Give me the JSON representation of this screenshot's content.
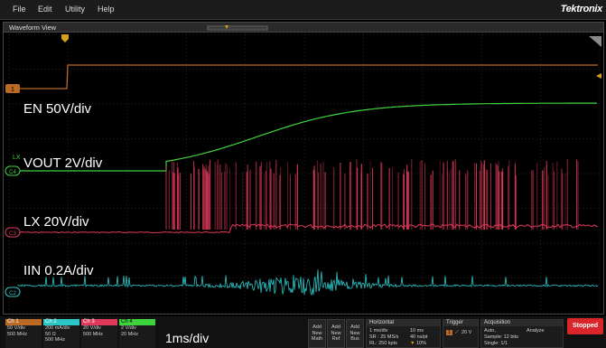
{
  "menu": {
    "items": [
      "File",
      "Edit",
      "Utility",
      "Help"
    ],
    "brand": "Tektronix"
  },
  "waveform_view": {
    "title": "Waveform View"
  },
  "channel_labels": {
    "en": "EN 50V/div",
    "vout": "VOUT 2V/div",
    "lx": "LX 20V/div",
    "iin": "IIN 0.2A/div"
  },
  "markers": {
    "ch1": "1",
    "ch4": "C4",
    "ch3": "C3",
    "ch2": "C2",
    "lx_ref": "LX"
  },
  "colors": {
    "ch1": "#b96a25",
    "ch2": "#2cc6c6",
    "ch3": "#e03a5a",
    "ch4": "#3ed43e",
    "stopped": "#d8262b"
  },
  "channels": [
    {
      "name": "Ch 1",
      "scale": "50 V/div",
      "coupling": "",
      "bw": "500 MHz"
    },
    {
      "name": "Ch 2",
      "scale": "200 mA/div",
      "coupling": "50 Ω",
      "bw": "500 MHz"
    },
    {
      "name": "Ch 3",
      "scale": "20 V/div",
      "coupling": "",
      "bw": "500 MHz"
    },
    {
      "name": "Ch 4",
      "scale": "2 V/div",
      "coupling": "",
      "bw": "20 MHz"
    }
  ],
  "timebase_label": "1ms/div",
  "add_buttons": [
    {
      "line1": "Add",
      "line2": "New",
      "line3": "Math"
    },
    {
      "line1": "Add",
      "line2": "New",
      "line3": "Ref"
    },
    {
      "line1": "Add",
      "line2": "New",
      "line3": "Bus"
    }
  ],
  "horizontal": {
    "title": "Horizontal",
    "scale": "1 ms/div",
    "record": "10 ms",
    "sample_rate": "SR : 25 MS/s",
    "pt": "40 ns/pt",
    "record_length": "RL: 250 kpts",
    "position": "10%"
  },
  "trigger": {
    "title": "Trigger",
    "channel": "1",
    "level": "20 V"
  },
  "acquisition": {
    "title": "Acquisition",
    "mode": "Auto,",
    "analyze": "Analyze",
    "sample": "Sample: 12 bits",
    "single": "Single: 1/1"
  },
  "status": "Stopped"
}
